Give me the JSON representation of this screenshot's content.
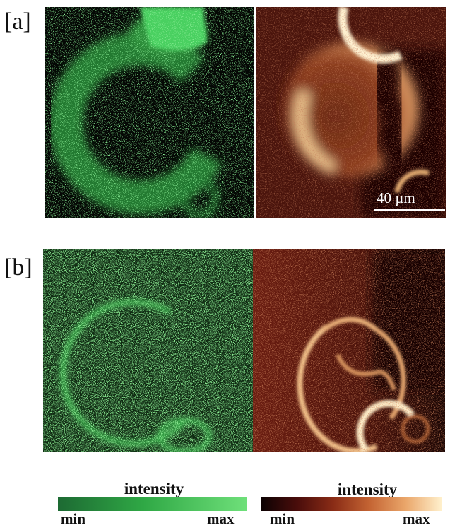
{
  "panels": [
    {
      "label": "[a]"
    },
    {
      "label": "[b]"
    }
  ],
  "scale_bar": {
    "text": "40 µm"
  },
  "colorbars": [
    {
      "title": "intensity",
      "min_label": "min",
      "max_label": "max",
      "colors": [
        "#1d6a33",
        "#2fa845",
        "#6fe07a"
      ]
    },
    {
      "title": "intensity",
      "min_label": "min",
      "max_label": "max",
      "colors": [
        "#0d0203",
        "#8a2c16",
        "#fff0cc"
      ]
    }
  ]
}
